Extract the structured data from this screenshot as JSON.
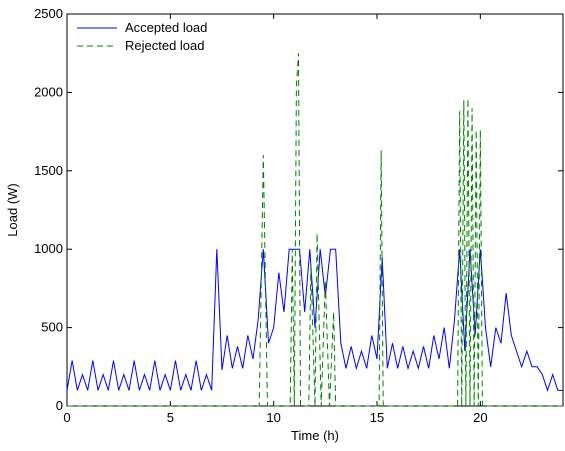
{
  "chart_data": {
    "type": "line",
    "xlabel": "Time (h)",
    "ylabel": "Load (W)",
    "xlim": [
      0,
      24
    ],
    "xticks": [
      0,
      5,
      10,
      15,
      20
    ],
    "ylim": [
      0,
      2500
    ],
    "yticks": [
      0,
      500,
      1000,
      1500,
      2000,
      2500
    ],
    "grid": false,
    "legend": "upper left",
    "series": [
      {
        "name": "Accepted load",
        "color": "#0000ff",
        "line_style": "solid",
        "x": [
          0,
          0.25,
          0.5,
          0.75,
          1,
          1.25,
          1.5,
          1.75,
          2,
          2.25,
          2.5,
          2.75,
          3,
          3.25,
          3.5,
          3.75,
          4,
          4.25,
          4.5,
          4.75,
          5,
          5.25,
          5.5,
          5.75,
          6,
          6.25,
          6.5,
          6.75,
          7,
          7.25,
          7.5,
          7.75,
          8,
          8.25,
          8.5,
          8.75,
          9,
          9.25,
          9.5,
          9.75,
          10,
          10.25,
          10.5,
          10.75,
          11,
          11.25,
          11.5,
          11.75,
          12,
          12.25,
          12.5,
          12.75,
          13,
          13.25,
          13.5,
          13.75,
          14,
          14.25,
          14.5,
          14.75,
          15,
          15.25,
          15.5,
          15.75,
          16,
          16.25,
          16.5,
          16.75,
          17,
          17.25,
          17.5,
          17.75,
          18,
          18.25,
          18.5,
          18.75,
          19,
          19.25,
          19.5,
          19.75,
          20,
          20.25,
          20.5,
          20.75,
          21,
          21.25,
          21.5,
          21.75,
          22,
          22.25,
          22.5,
          22.75,
          23,
          23.25,
          23.5,
          23.75,
          24
        ],
        "values": [
          100,
          290,
          100,
          200,
          100,
          290,
          100,
          200,
          100,
          290,
          100,
          200,
          100,
          290,
          100,
          200,
          100,
          290,
          100,
          200,
          100,
          290,
          100,
          200,
          100,
          290,
          100,
          200,
          100,
          1000,
          230,
          450,
          240,
          380,
          240,
          450,
          300,
          550,
          1000,
          400,
          500,
          850,
          600,
          1000,
          1000,
          1000,
          600,
          1000,
          500,
          1000,
          700,
          1000,
          1000,
          400,
          240,
          380,
          240,
          350,
          240,
          450,
          300,
          950,
          240,
          400,
          240,
          380,
          240,
          350,
          240,
          380,
          240,
          450,
          300,
          500,
          240,
          550,
          1000,
          350,
          1000,
          450,
          1000,
          500,
          250,
          500,
          400,
          720,
          450,
          350,
          250,
          350,
          250,
          250,
          200,
          100,
          200,
          100,
          100
        ]
      },
      {
        "name": "Rejected load",
        "color": "#008000",
        "line_style": "dashed",
        "x": [
          0,
          9.3,
          9.5,
          9.7,
          10.8,
          10.9,
          11.0,
          11.1,
          11.2,
          11.3,
          11.7,
          11.8,
          12.0,
          12.1,
          12.3,
          12.5,
          12.7,
          12.9,
          13.0,
          15.1,
          15.2,
          15.3,
          18.9,
          19.0,
          19.1,
          19.2,
          19.3,
          19.4,
          19.5,
          19.6,
          19.7,
          19.8,
          19.9,
          20.0,
          20.1,
          24
        ],
        "values": [
          0,
          0,
          1600,
          0,
          0,
          1000,
          0,
          2040,
          2250,
          0,
          0,
          900,
          0,
          1100,
          0,
          800,
          0,
          600,
          0,
          0,
          1630,
          0,
          0,
          1880,
          0,
          1950,
          0,
          1960,
          0,
          1900,
          0,
          1760,
          0,
          1760,
          0,
          0
        ]
      }
    ]
  }
}
